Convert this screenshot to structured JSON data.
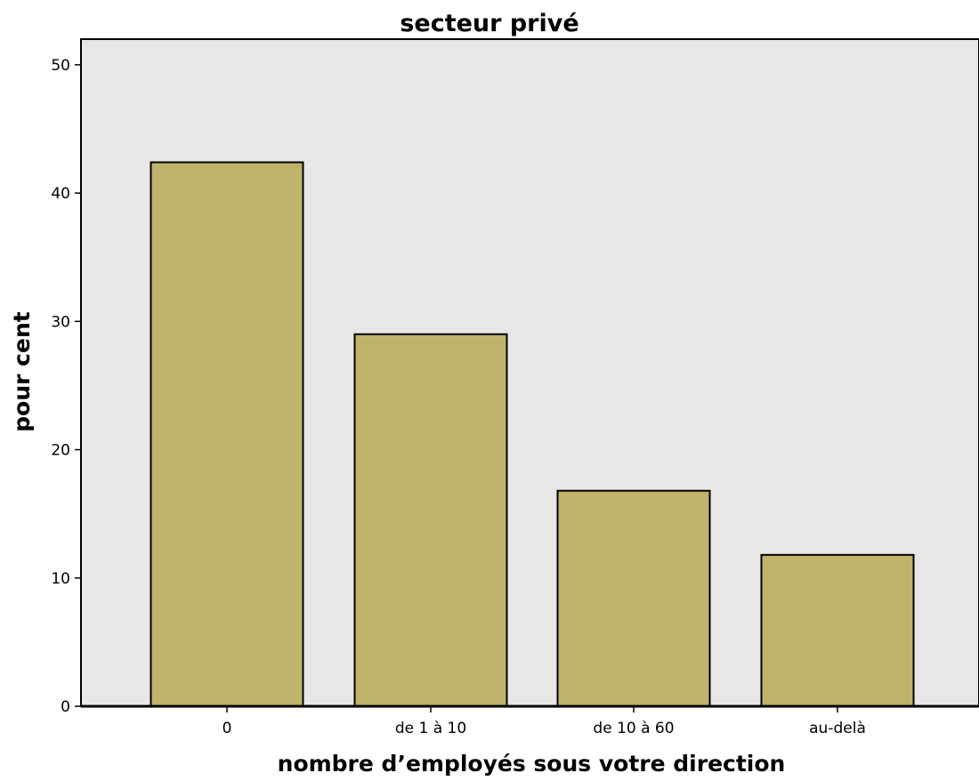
{
  "chart_data": {
    "type": "bar",
    "title": "secteur privé",
    "xlabel": "nombre d’employés sous votre direction",
    "ylabel": "pour cent",
    "categories": [
      "0",
      "de 1 à 10",
      "de 10 à 60",
      "au-delà"
    ],
    "values": [
      42.4,
      29.0,
      16.8,
      11.8
    ],
    "ylim": [
      0,
      52
    ],
    "yticks": [
      "0",
      "10",
      "20",
      "30",
      "40",
      "50"
    ],
    "grid": false,
    "legend": "none",
    "colors": {
      "bar_fill": "#bfb46c",
      "bar_stroke": "#000000",
      "plot_background": "#e8e7e5",
      "axis": "#000000"
    }
  }
}
